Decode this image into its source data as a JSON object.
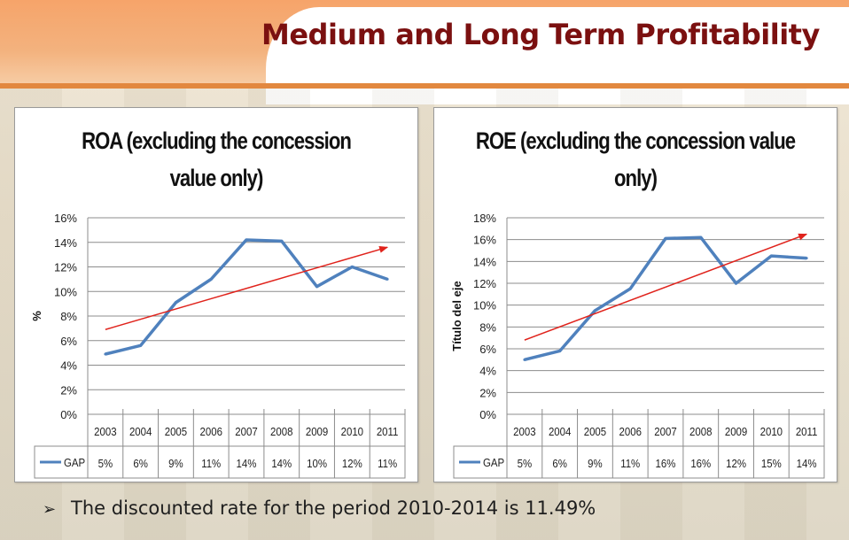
{
  "slide": {
    "title": "Medium and Long Term Profitability",
    "footnote": "The discounted rate for the period 2010-2014 is 11.49%",
    "bullet": "➢"
  },
  "colors": {
    "title": "#7b1010",
    "series": "#4f81bd",
    "trend": "#e0231c",
    "banner": "#f3b27e"
  },
  "chart_data": [
    {
      "type": "line",
      "title": "ROA (excluding the concession value only)",
      "title_lines": [
        "ROA (excluding the concession",
        "value only)"
      ],
      "ylabel": "%",
      "xlabel": "",
      "categories": [
        "2003",
        "2004",
        "2005",
        "2006",
        "2007",
        "2008",
        "2009",
        "2010",
        "2011"
      ],
      "series": [
        {
          "name": "GAP",
          "values": [
            4.9,
            5.6,
            9.1,
            11.0,
            14.2,
            14.1,
            10.4,
            12.0,
            11.0
          ]
        }
      ],
      "table_labels": [
        "5%",
        "6%",
        "9%",
        "11%",
        "14%",
        "14%",
        "10%",
        "12%",
        "11%"
      ],
      "yticks": [
        "0%",
        "2%",
        "4%",
        "6%",
        "8%",
        "10%",
        "12%",
        "14%",
        "16%"
      ],
      "ylim": [
        0,
        16
      ],
      "trend": {
        "from": [
          2003,
          6.9
        ],
        "to": [
          2011,
          13.6
        ]
      },
      "grid": true,
      "legend": "data-table"
    },
    {
      "type": "line",
      "title": "ROE (excluding the concession value only)",
      "title_lines": [
        "ROE (excluding the concession value",
        "only)"
      ],
      "ylabel": "Título del eje",
      "xlabel": "",
      "categories": [
        "2003",
        "2004",
        "2005",
        "2006",
        "2007",
        "2008",
        "2009",
        "2010",
        "2011"
      ],
      "series": [
        {
          "name": "GAP",
          "values": [
            5.0,
            5.8,
            9.5,
            11.5,
            16.1,
            16.2,
            12.0,
            14.5,
            14.3
          ]
        }
      ],
      "table_labels": [
        "5%",
        "6%",
        "9%",
        "11%",
        "16%",
        "16%",
        "12%",
        "15%",
        "14%"
      ],
      "yticks": [
        "0%",
        "2%",
        "4%",
        "6%",
        "8%",
        "10%",
        "12%",
        "14%",
        "16%",
        "18%"
      ],
      "ylim": [
        0,
        18
      ],
      "trend": {
        "from": [
          2003,
          6.8
        ],
        "to": [
          2011,
          16.5
        ]
      },
      "grid": true,
      "legend": "data-table"
    }
  ]
}
